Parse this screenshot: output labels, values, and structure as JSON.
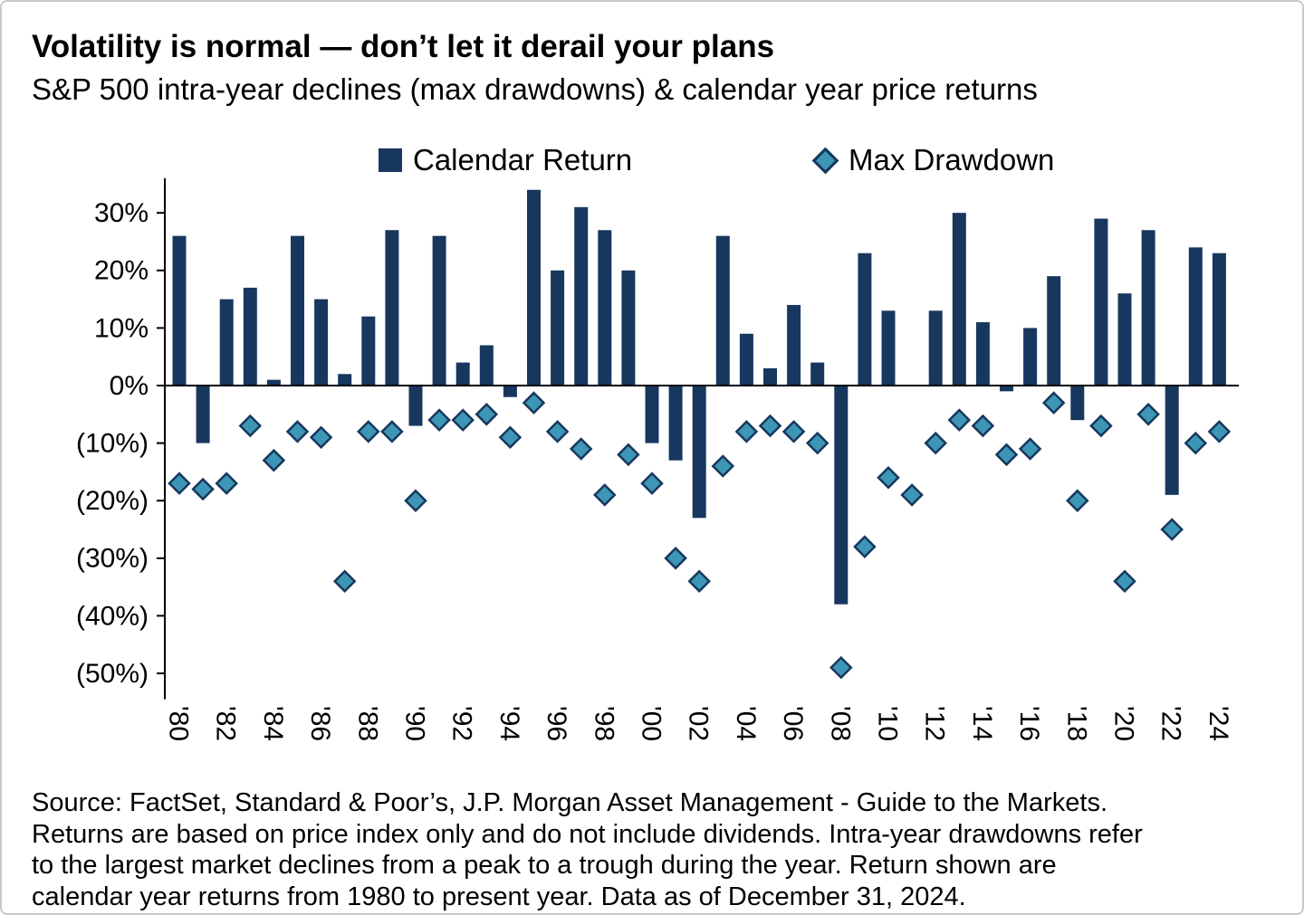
{
  "header": {
    "title": "Volatility is normal — don’t let it derail your plans",
    "subtitle": "S&P 500 intra-year declines (max drawdowns) & calendar year price returns"
  },
  "legend": {
    "calendar_return": "Calendar Return",
    "max_drawdown": "Max Drawdown"
  },
  "colors": {
    "bar_navy": "#17375E",
    "diamond_teal": "#3D96B5",
    "axis_black": "#000000"
  },
  "chart_data": {
    "type": "bar",
    "title": "Volatility is normal — don’t let it derail your plans",
    "subtitle": "S&P 500 intra-year declines (max drawdowns) & calendar year price returns",
    "x": [
      1980,
      1981,
      1982,
      1983,
      1984,
      1985,
      1986,
      1987,
      1988,
      1989,
      1990,
      1991,
      1992,
      1993,
      1994,
      1995,
      1996,
      1997,
      1998,
      1999,
      2000,
      2001,
      2002,
      2003,
      2004,
      2005,
      2006,
      2007,
      2008,
      2009,
      2010,
      2011,
      2012,
      2013,
      2014,
      2015,
      2016,
      2017,
      2018,
      2019,
      2020,
      2021,
      2022,
      2023,
      2024
    ],
    "series": [
      {
        "name": "Calendar Return",
        "type": "bar",
        "color": "#17375E",
        "values": [
          26,
          -10,
          15,
          17,
          1,
          26,
          15,
          2,
          12,
          27,
          -7,
          26,
          4,
          7,
          -2,
          34,
          20,
          31,
          27,
          20,
          -10,
          -13,
          -23,
          26,
          9,
          3,
          14,
          4,
          -38,
          23,
          13,
          0,
          13,
          30,
          11,
          -1,
          10,
          19,
          -6,
          29,
          16,
          27,
          -19,
          24,
          23
        ]
      },
      {
        "name": "Max Drawdown",
        "type": "scatter",
        "marker": "diamond",
        "color": "#3D96B5",
        "stroke": "#17375E",
        "values": [
          -17,
          -18,
          -17,
          -7,
          -13,
          -8,
          -9,
          -34,
          -8,
          -8,
          -20,
          -6,
          -6,
          -5,
          -9,
          -3,
          -8,
          -11,
          -19,
          -12,
          -17,
          -30,
          -34,
          -14,
          -8,
          -7,
          -8,
          -10,
          -49,
          -28,
          -16,
          -19,
          -10,
          -6,
          -7,
          -12,
          -11,
          -3,
          -20,
          -7,
          -34,
          -5,
          -25,
          -10,
          -8
        ]
      }
    ],
    "ylim": [
      -55,
      36
    ],
    "yticks": [
      30,
      20,
      10,
      0,
      -10,
      -20,
      -30,
      -40,
      -50
    ],
    "ytick_labels": [
      "30%",
      "20%",
      "10%",
      "0%",
      "(10%)",
      "(20%)",
      "(30%)",
      "(40%)",
      "(50%)"
    ],
    "xtick_labels": [
      "'80",
      "'82",
      "'84",
      "'86",
      "'88",
      "'90",
      "'92",
      "'94",
      "'96",
      "'98",
      "'00",
      "'02",
      "'04",
      "'06",
      "'08",
      "'10",
      "'12",
      "'14",
      "'16",
      "'18",
      "'20",
      "'22",
      "'24"
    ],
    "grid": false,
    "legend_position": "top"
  },
  "source": {
    "line1": "Source: FactSet, Standard & Poor’s, J.P. Morgan Asset Management - Guide to the Markets.",
    "line2": "Returns are based on price index only and do not include dividends. Intra-year drawdowns refer",
    "line3": "to the largest market declines from a peak to a trough during the year. Return shown are",
    "line4": "calendar year returns from 1980 to present year. Data as of December 31, 2024."
  }
}
